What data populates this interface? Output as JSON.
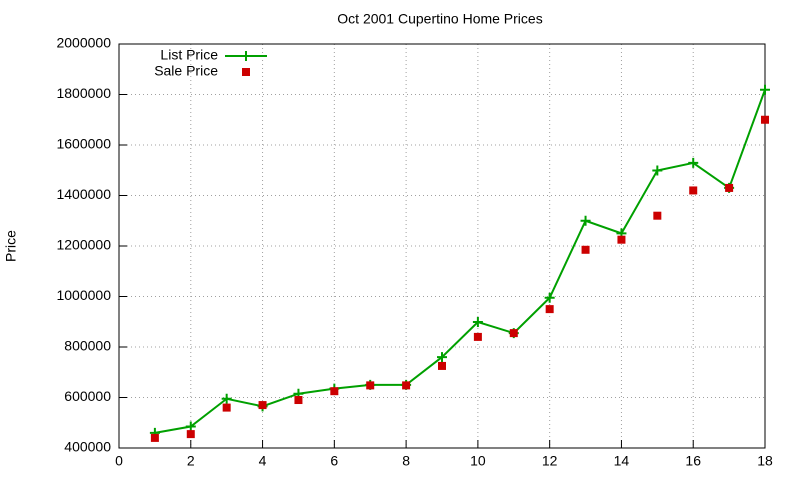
{
  "chart_data": {
    "type": "line",
    "title": "Oct 2001 Cupertino Home Prices",
    "y_label": "Price",
    "x": [
      1,
      2,
      3,
      4,
      5,
      6,
      7,
      8,
      9,
      10,
      11,
      12,
      13,
      14,
      15,
      16,
      17,
      18
    ],
    "series": [
      {
        "name": "List Price",
        "color": "#00a000",
        "mode": "linespoints",
        "marker": "plus",
        "values": [
          460000,
          485000,
          595000,
          565000,
          615000,
          635000,
          650000,
          650000,
          760000,
          899000,
          855000,
          995000,
          1300000,
          1250000,
          1499000,
          1529000,
          1430000,
          1819000
        ]
      },
      {
        "name": "Sale Price",
        "color": "#cc0000",
        "mode": "points",
        "marker": "square",
        "values": [
          440000,
          455000,
          560000,
          570000,
          590000,
          625000,
          648000,
          648000,
          725000,
          840000,
          855000,
          950000,
          1185000,
          1225000,
          1320000,
          1420000,
          1430000,
          1700000
        ]
      }
    ],
    "xlim": [
      0,
      18
    ],
    "xticks": [
      0,
      2,
      4,
      6,
      8,
      10,
      12,
      14,
      16,
      18
    ],
    "ylim": [
      400000,
      2000000
    ],
    "yticks": [
      400000,
      600000,
      800000,
      1000000,
      1200000,
      1400000,
      1600000,
      1800000,
      2000000
    ],
    "grid": true,
    "legend": "top-left"
  }
}
